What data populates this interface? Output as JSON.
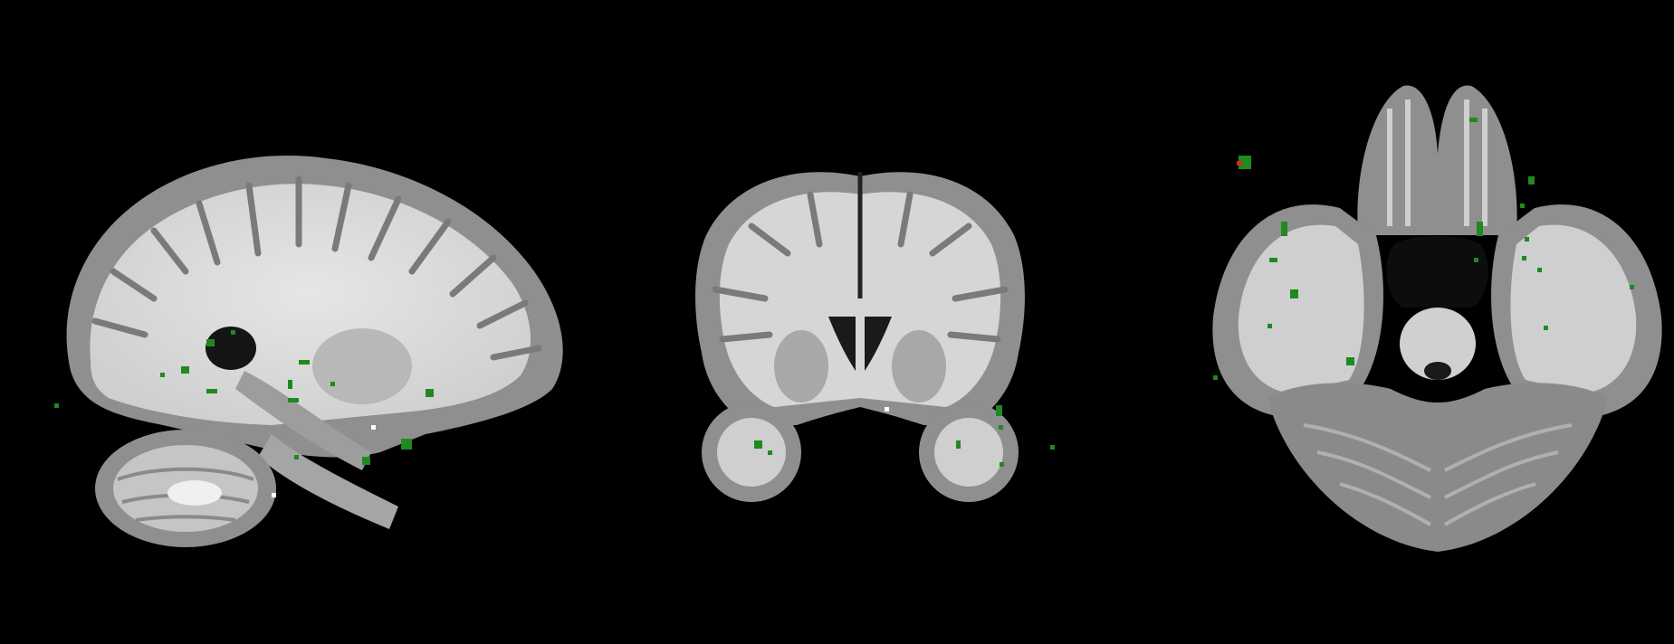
{
  "viewer": {
    "background": "#000000",
    "overlay_color": "#1f8a1f",
    "overlay_color_dark": "#0f6a12",
    "overlay_hot_color": "#d7261e",
    "tissue_colors": {
      "outline": "#555555",
      "cortex_gray": "#8c8c8c",
      "white_matter": "#d9d9d9",
      "csf_dark": "#1c1c1c",
      "deep_gray": "#a9a9a9"
    },
    "views": [
      {
        "plane": "sagittal"
      },
      {
        "plane": "coronal"
      },
      {
        "plane": "axial"
      }
    ]
  }
}
